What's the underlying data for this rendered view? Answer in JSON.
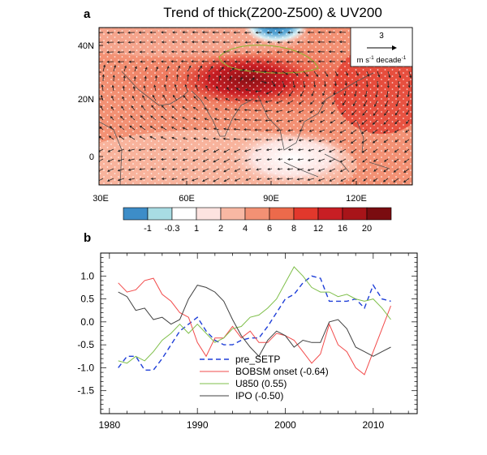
{
  "panel_a": {
    "letter": "a",
    "title": "Trend of thick(Z200-Z500) & UV200",
    "ref_vector_value": "3",
    "ref_vector_unit": "m s",
    "ref_vector_sup1": "-1",
    "ref_vector_unit2": " decade",
    "ref_vector_sup2": "-1",
    "lon_labels": [
      "30E",
      "60E",
      "90E",
      "120E"
    ],
    "lat_labels": [
      "40N",
      "20N",
      "0"
    ],
    "colorbar": {
      "labels": [
        "-1",
        "-0.3",
        "1",
        "2",
        "4",
        "6",
        "8",
        "12",
        "16",
        "20"
      ],
      "colors": [
        "#3d8dc8",
        "#a8dce3",
        "#ffffff",
        "#fde3e0",
        "#f8b8a3",
        "#f39174",
        "#ec6a4b",
        "#e2382c",
        "#c81e24",
        "#a81419",
        "#7a0c10"
      ]
    }
  },
  "panel_b": {
    "letter": "b"
  },
  "chart_data": {
    "type": "line",
    "title": "",
    "xlabel": "",
    "ylabel": "",
    "xlim": [
      1979,
      2015
    ],
    "ylim": [
      -2.0,
      1.5
    ],
    "xticks": [
      1980,
      1990,
      2000,
      2010
    ],
    "yticks": [
      1.0,
      0.5,
      0.0,
      -0.5,
      -1.0,
      -1.5
    ],
    "ytick_labels": [
      "1.0",
      "0.5",
      "0.0",
      "-0.5",
      "-1.0",
      "-1.5"
    ],
    "x": [
      1981,
      1982,
      1983,
      1984,
      1985,
      1986,
      1987,
      1988,
      1989,
      1990,
      1991,
      1992,
      1993,
      1994,
      1995,
      1996,
      1997,
      1998,
      1999,
      2000,
      2001,
      2002,
      2003,
      2004,
      2005,
      2006,
      2007,
      2008,
      2009,
      2010,
      2011,
      2012
    ],
    "legend_position": "lower-center",
    "series": [
      {
        "name": "pre_SETP",
        "color": "#1f3fd8",
        "dash": "6,4",
        "values": [
          -1.0,
          -0.75,
          -0.75,
          -1.05,
          -1.05,
          -0.8,
          -0.5,
          -0.2,
          -0.05,
          0.1,
          -0.2,
          -0.4,
          -0.5,
          -0.5,
          -0.4,
          -0.35,
          -0.35,
          -0.1,
          0.2,
          0.5,
          0.6,
          0.85,
          1.0,
          0.95,
          0.45,
          0.45,
          0.45,
          0.5,
          0.3,
          0.8,
          0.5,
          0.45
        ]
      },
      {
        "name": "BOBSM onset (-0.64)",
        "color": "#f24b4b",
        "dash": "",
        "values": [
          0.85,
          0.65,
          0.7,
          0.9,
          0.95,
          0.6,
          0.45,
          0.2,
          0.1,
          -0.45,
          -0.75,
          -0.35,
          -0.35,
          -0.1,
          -0.35,
          -0.2,
          -0.45,
          -0.45,
          -0.25,
          -0.3,
          -0.4,
          -0.65,
          -0.9,
          -0.7,
          -0.05,
          -0.5,
          -0.65,
          -1.0,
          -1.15,
          -0.65,
          -0.15,
          0.35
        ]
      },
      {
        "name": "U850 (0.55)",
        "color": "#7fbf4a",
        "dash": "",
        "values": [
          -0.85,
          -0.9,
          -0.75,
          -0.85,
          -0.65,
          -0.4,
          -0.25,
          -0.05,
          -0.25,
          -0.05,
          -0.25,
          -0.45,
          -0.35,
          -0.15,
          -0.1,
          0.1,
          0.15,
          0.3,
          0.5,
          0.85,
          1.2,
          1.0,
          0.75,
          0.65,
          0.65,
          0.55,
          0.6,
          0.5,
          0.45,
          0.5,
          0.3,
          0.05
        ]
      },
      {
        "name": "IPO (-0.50)",
        "color": "#404040",
        "dash": "",
        "values": [
          0.65,
          0.55,
          0.25,
          0.3,
          0.05,
          0.1,
          -0.05,
          0.05,
          0.5,
          0.8,
          0.75,
          0.65,
          0.45,
          0.05,
          -0.3,
          -0.55,
          -0.75,
          -0.4,
          -0.2,
          -0.3,
          -0.55,
          -0.4,
          -0.45,
          -0.45,
          0.0,
          0.05,
          -0.15,
          -0.55,
          -0.65,
          -0.75,
          -0.65,
          -0.55
        ]
      }
    ]
  }
}
